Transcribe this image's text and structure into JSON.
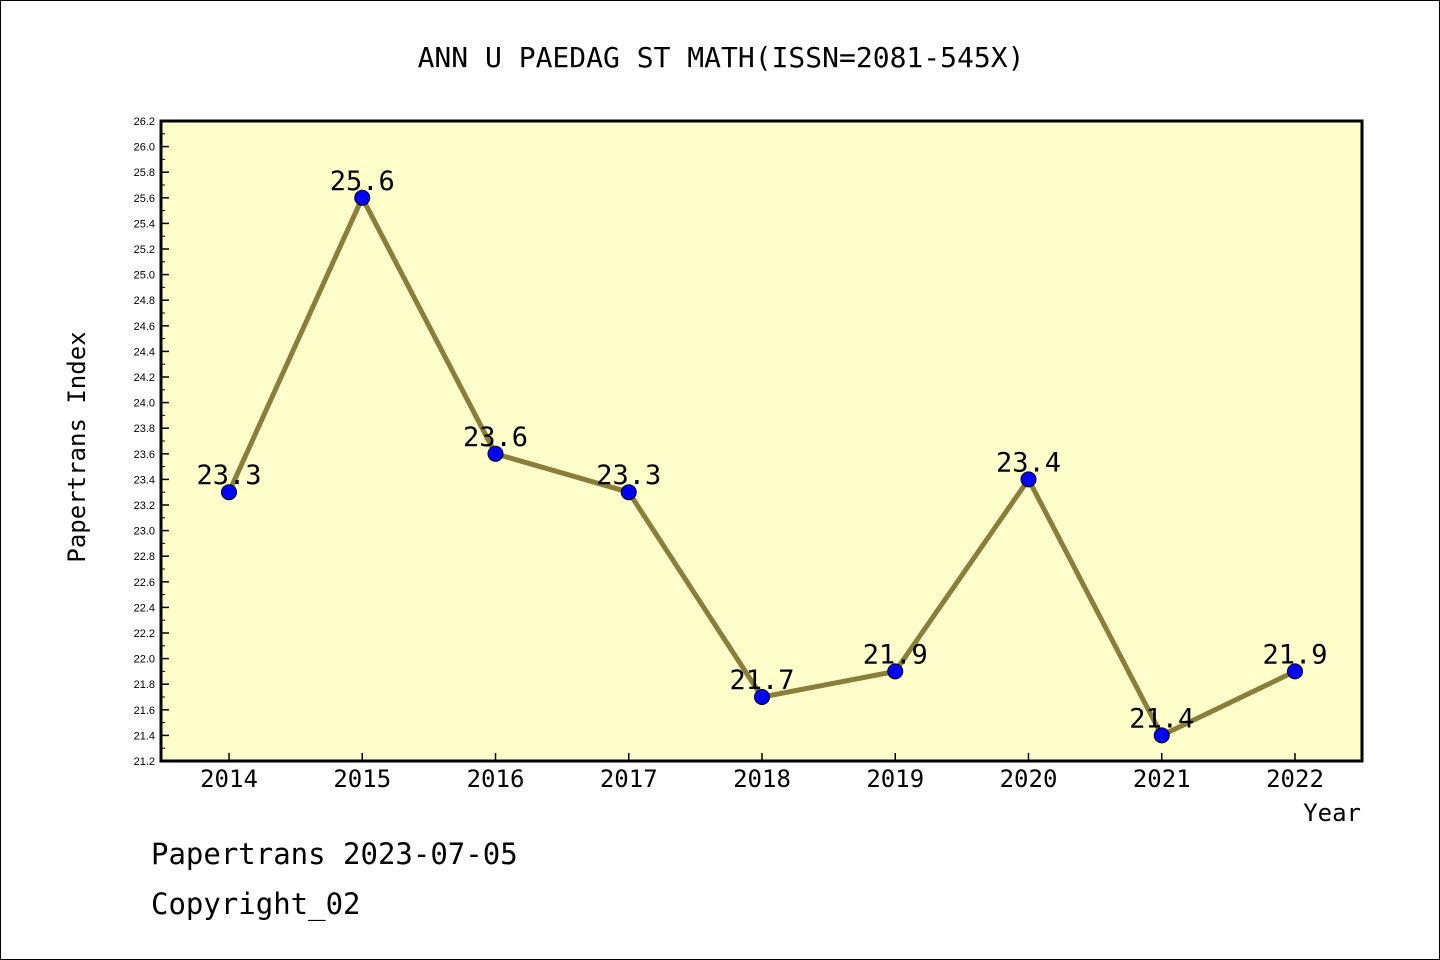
{
  "chart_data": {
    "type": "line",
    "title": "ANN U PAEDAG ST MATH(ISSN=2081-545X)",
    "xlabel": "Year",
    "ylabel": "Papertrans Index",
    "categories": [
      "2014",
      "2015",
      "2016",
      "2017",
      "2018",
      "2019",
      "2020",
      "2021",
      "2022"
    ],
    "series": [
      {
        "values": [
          23.3,
          25.6,
          23.6,
          23.3,
          21.7,
          21.9,
          23.4,
          21.4,
          21.9
        ],
        "data_labels": [
          "23.3",
          "25.6",
          "23.6",
          "23.3",
          "21.7",
          "21.9",
          "23.4",
          "21.4",
          "21.9"
        ]
      }
    ],
    "ylim": [
      21.2,
      26.2
    ],
    "yticks": [
      "21.2",
      "21.4",
      "21.6",
      "21.8",
      "22.0",
      "22.2",
      "22.4",
      "22.6",
      "22.8",
      "23.0",
      "23.2",
      "23.4",
      "23.6",
      "23.8",
      "24.0",
      "24.2",
      "24.4",
      "24.6",
      "24.8",
      "25.0",
      "25.2",
      "25.4",
      "25.6",
      "25.8",
      "26.0",
      "26.2"
    ],
    "grid": false,
    "colors": {
      "plot_background": "#ffffcc",
      "line": "#8b7d3a",
      "marker": "#0000ff"
    }
  },
  "footer": {
    "line1": "Papertrans 2023-07-05",
    "line2": "Copyright_02"
  }
}
